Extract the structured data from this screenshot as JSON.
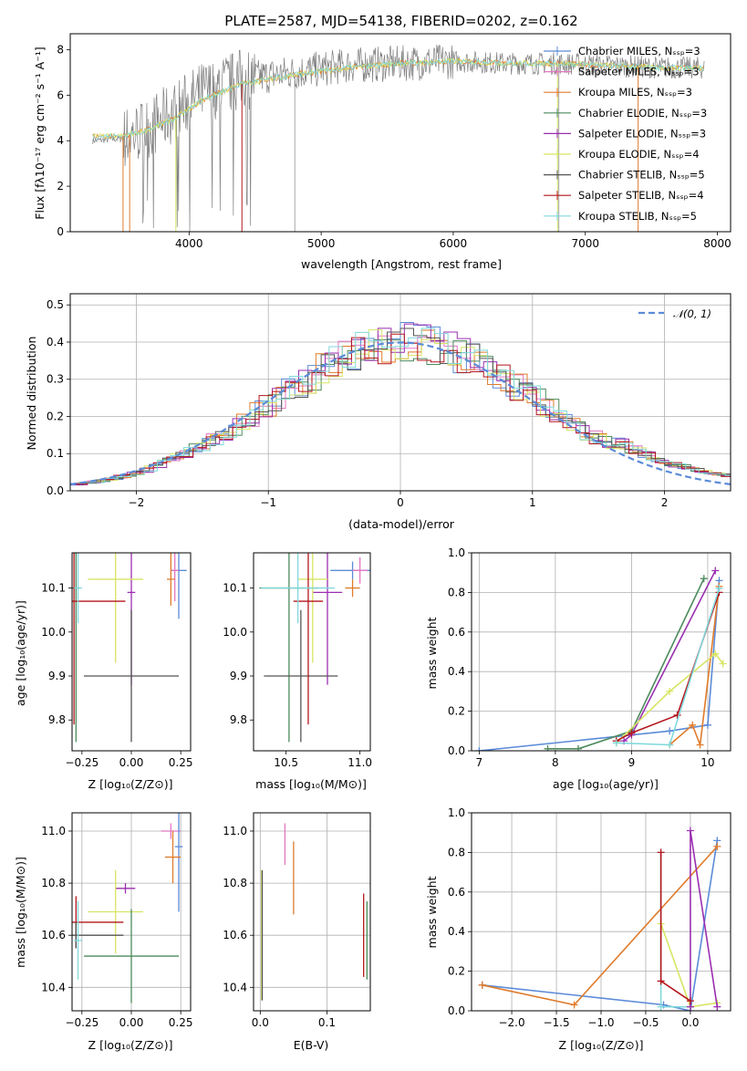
{
  "colors": {
    "Chabrier MILES": "#5b8bd8",
    "Salpeter MILES": "#e377c2",
    "Kroupa MILES": "#e07b2b",
    "Chabrier ELODIE": "#4c8b5c",
    "Salpeter ELODIE": "#9a2fb0",
    "Kroupa ELODIE": "#d7e563",
    "Chabrier STELIB": "#555555",
    "Salpeter STELIB": "#b4161c",
    "Kroupa STELIB": "#7fd9dc",
    "normal": "#5b8bd8"
  },
  "chart_data": [
    {
      "id": "spectrum",
      "type": "line",
      "title": "PLATE=2587, MJD=54138, FIBERID=0202, z=0.162",
      "xlabel": "wavelength [Angstrom, rest frame]",
      "ylabel": "Flux [fλ10⁻¹⁷ erg cm⁻² s⁻¹ A⁻¹]",
      "xlim": [
        3100,
        8100
      ],
      "ylim": [
        0,
        8.7
      ],
      "xticks": [
        "4000",
        "5000",
        "6000",
        "7000",
        "8000"
      ],
      "yticks": [
        "0",
        "2",
        "4",
        "6",
        "8"
      ],
      "grid": false,
      "legend": "right",
      "legend_entries": [
        "Chabrier MILES, Nₛₛₚ=3",
        "Salpeter MILES, Nₛₛₚ=3",
        "Kroupa MILES, Nₛₛₚ=3",
        "Chabrier ELODIE, Nₛₛₚ=3",
        "Salpeter ELODIE, Nₛₛₚ=3",
        "Kroupa ELODIE, Nₛₛₚ=4",
        "Chabrier STELIB, Nₛₛₚ=5",
        "Salpeter STELIB, Nₛₛₚ=4",
        "Kroupa STELIB, Nₛₛₚ=5"
      ],
      "legend_models": [
        "Chabrier MILES",
        "Salpeter MILES",
        "Kroupa MILES",
        "Chabrier ELODIE",
        "Salpeter ELODIE",
        "Kroupa ELODIE",
        "Chabrier STELIB",
        "Salpeter STELIB",
        "Kroupa STELIB"
      ],
      "data_continuum": {
        "x": [
          3270,
          3500,
          3700,
          3900,
          4100,
          4400,
          4800,
          5200,
          5600,
          6000,
          6400,
          6800,
          7200,
          7600,
          7900
        ],
        "y": [
          4.0,
          4.1,
          4.6,
          5.3,
          6.1,
          6.7,
          7.0,
          7.3,
          7.4,
          7.5,
          7.4,
          7.4,
          7.3,
          7.2,
          7.2
        ]
      },
      "model_continuum": {
        "x": [
          3270,
          3500,
          3700,
          3900,
          4100,
          4400,
          4800,
          5200,
          5600,
          6000,
          6400,
          6800,
          7200,
          7600,
          7900
        ],
        "y": [
          4.2,
          4.2,
          4.5,
          5.0,
          5.8,
          6.5,
          6.9,
          7.2,
          7.4,
          7.5,
          7.4,
          7.4,
          7.3,
          7.2,
          7.2
        ]
      }
    },
    {
      "id": "residuals",
      "type": "line",
      "xlabel": "(data-model)/error",
      "ylabel": "Normed distribution",
      "xlim": [
        -2.5,
        2.5
      ],
      "ylim": [
        0,
        0.53
      ],
      "xticks": [
        "−2",
        "−1",
        "0",
        "1",
        "2"
      ],
      "yticks": [
        "0.0",
        "0.1",
        "0.2",
        "0.3",
        "0.4",
        "0.5"
      ],
      "grid": true,
      "legend": "top-right",
      "legend_entries": [
        "𝒩(0, 1)"
      ],
      "normal": {
        "mean": 0,
        "sigma": 1
      }
    },
    {
      "id": "age-Z",
      "type": "scatter",
      "xlabel": "Z [log₁₀(Z/Z⊙)]",
      "ylabel": "age  [log₁₀(age/yr)]",
      "xlim": [
        -0.3,
        0.3
      ],
      "ylim": [
        9.73,
        10.18
      ],
      "xticks": [
        "−0.25",
        "0.00",
        "0.25"
      ],
      "yticks": [
        "9.8",
        "9.9",
        "10.0",
        "10.1"
      ],
      "points": [
        {
          "model": "Chabrier MILES",
          "x": 0.24,
          "y": 10.14,
          "xerr": 0.04,
          "yerr": 0.11
        },
        {
          "model": "Salpeter MILES",
          "x": 0.22,
          "y": 10.14,
          "xerr": 0.02,
          "yerr": 0.07
        },
        {
          "model": "Kroupa MILES",
          "x": 0.2,
          "y": 10.12,
          "xerr": 0.02,
          "yerr": 0.06
        },
        {
          "model": "Chabrier ELODIE",
          "x": -0.28,
          "y": 10.1,
          "xerr": 0.02,
          "yerr": 0.35
        },
        {
          "model": "Salpeter ELODIE",
          "x": 0.0,
          "y": 10.09,
          "xerr": 0.02,
          "yerr": 0.21
        },
        {
          "model": "Kroupa ELODIE",
          "x": -0.08,
          "y": 10.12,
          "xerr": 0.14,
          "yerr": 0.19
        },
        {
          "model": "Chabrier STELIB",
          "x": 0.0,
          "y": 9.9,
          "xerr": 0.24,
          "yerr": 0.15
        },
        {
          "model": "Salpeter STELIB",
          "x": -0.29,
          "y": 10.07,
          "xerr": 0.26,
          "yerr": 0.28
        },
        {
          "model": "Kroupa STELIB",
          "x": -0.27,
          "y": 10.1,
          "xerr": 0.02,
          "yerr": 0.08
        }
      ]
    },
    {
      "id": "age-mass",
      "type": "scatter",
      "xlabel": "mass [log₁₀(M/M⊙)]",
      "ylabel": "",
      "xlim": [
        10.28,
        11.07
      ],
      "ylim": [
        9.73,
        10.18
      ],
      "xticks": [
        "10.5",
        "11.0"
      ],
      "yticks": [
        "9.8",
        "9.9",
        "10.0",
        "10.1"
      ],
      "points": [
        {
          "model": "Chabrier MILES",
          "x": 10.95,
          "y": 10.14,
          "xerr": 0.15,
          "yerr": 0.02
        },
        {
          "model": "Salpeter MILES",
          "x": 11.0,
          "y": 10.14,
          "xerr": 0.05,
          "yerr": 0.03
        },
        {
          "model": "Kroupa MILES",
          "x": 10.95,
          "y": 10.1,
          "xerr": 0.05,
          "yerr": 0.02
        },
        {
          "model": "Chabrier ELODIE",
          "x": 10.52,
          "y": 10.1,
          "xerr": 0.2,
          "yerr": 0.35
        },
        {
          "model": "Salpeter ELODIE",
          "x": 10.78,
          "y": 10.09,
          "xerr": 0.1,
          "yerr": 0.21
        },
        {
          "model": "Kroupa ELODIE",
          "x": 10.68,
          "y": 10.12,
          "xerr": 0.1,
          "yerr": 0.19
        },
        {
          "model": "Chabrier STELIB",
          "x": 10.6,
          "y": 9.9,
          "xerr": 0.25,
          "yerr": 0.15
        },
        {
          "model": "Salpeter STELIB",
          "x": 10.65,
          "y": 10.07,
          "xerr": 0.1,
          "yerr": 0.28
        },
        {
          "model": "Kroupa STELIB",
          "x": 10.58,
          "y": 10.1,
          "xerr": 0.25,
          "yerr": 0.08
        }
      ]
    },
    {
      "id": "weight-age",
      "type": "line",
      "xlabel": "age  [log₁₀(age/yr)]",
      "ylabel": "mass weight",
      "xlim": [
        6.9,
        10.3
      ],
      "ylim": [
        0,
        1.0
      ],
      "xticks": [
        "7",
        "8",
        "9",
        "10"
      ],
      "yticks": [
        "0.0",
        "0.2",
        "0.4",
        "0.6",
        "0.8",
        "1.0"
      ],
      "grid": true,
      "series": [
        {
          "model": "Chabrier MILES",
          "x": [
            7.0,
            9.5,
            10.0,
            10.15
          ],
          "y": [
            0.0,
            0.1,
            0.13,
            0.86
          ]
        },
        {
          "model": "Kroupa MILES",
          "x": [
            9.5,
            9.8,
            9.9,
            10.15
          ],
          "y": [
            0.03,
            0.13,
            0.03,
            0.83
          ]
        },
        {
          "model": "Chabrier ELODIE",
          "x": [
            7.9,
            8.3,
            9.0,
            9.95
          ],
          "y": [
            0.01,
            0.01,
            0.1,
            0.87
          ]
        },
        {
          "model": "Salpeter ELODIE",
          "x": [
            8.9,
            9.0,
            10.1
          ],
          "y": [
            0.05,
            0.08,
            0.91
          ]
        },
        {
          "model": "Kroupa ELODIE",
          "x": [
            8.8,
            9.5,
            10.1,
            10.2
          ],
          "y": [
            0.04,
            0.3,
            0.49,
            0.44
          ]
        },
        {
          "model": "Salpeter STELIB",
          "x": [
            8.8,
            9.0,
            9.6,
            10.15
          ],
          "y": [
            0.05,
            0.09,
            0.18,
            0.8
          ]
        },
        {
          "model": "Kroupa STELIB",
          "x": [
            8.8,
            9.5,
            10.15
          ],
          "y": [
            0.04,
            0.03,
            0.82
          ]
        }
      ]
    },
    {
      "id": "mass-Z",
      "type": "scatter",
      "xlabel": "Z [log₁₀(Z/Z⊙)]",
      "ylabel": "mass [log₁₀(M/M⊙)]",
      "xlim": [
        -0.3,
        0.3
      ],
      "ylim": [
        10.31,
        11.07
      ],
      "xticks": [
        "−0.25",
        "0.00",
        "0.25"
      ],
      "yticks": [
        "10.4",
        "10.6",
        "10.8",
        "11.0"
      ],
      "grid": true,
      "points": [
        {
          "model": "Salpeter MILES",
          "x": 0.2,
          "y": 11.0,
          "xerr": 0.05,
          "yerr": 0.03
        },
        {
          "model": "Chabrier MILES",
          "x": 0.24,
          "y": 10.94,
          "xerr": 0.02,
          "yerr": 0.25
        },
        {
          "model": "Kroupa MILES",
          "x": 0.21,
          "y": 10.9,
          "xerr": 0.04,
          "yerr": 0.1
        },
        {
          "model": "Salpeter ELODIE",
          "x": -0.03,
          "y": 10.78,
          "xerr": 0.05,
          "yerr": 0.02
        },
        {
          "model": "Kroupa ELODIE",
          "x": -0.08,
          "y": 10.69,
          "xerr": 0.14,
          "yerr": 0.16
        },
        {
          "model": "Salpeter STELIB",
          "x": -0.28,
          "y": 10.65,
          "xerr": 0.24,
          "yerr": 0.1
        },
        {
          "model": "Chabrier STELIB",
          "x": -0.28,
          "y": 10.6,
          "xerr": 0.24,
          "yerr": 0.05
        },
        {
          "model": "Kroupa STELIB",
          "x": -0.27,
          "y": 10.58,
          "xerr": 0.02,
          "yerr": 0.15
        },
        {
          "model": "Chabrier ELODIE",
          "x": 0.0,
          "y": 10.52,
          "xerr": 0.24,
          "yerr": 0.18
        }
      ]
    },
    {
      "id": "mass-EBV",
      "type": "scatter",
      "xlabel": "E(B-V)",
      "ylabel": "",
      "xlim": [
        -0.01,
        0.165
      ],
      "ylim": [
        10.31,
        11.07
      ],
      "xticks": [
        "0.0",
        "0.1"
      ],
      "yticks": [
        "10.4",
        "10.6",
        "10.8",
        "11.0"
      ],
      "grid": true,
      "points": [
        {
          "model": "Salpeter MILES",
          "x": 0.037,
          "y": 10.95,
          "yerr": 0.08
        },
        {
          "model": "Kroupa MILES",
          "x": 0.05,
          "y": 10.82,
          "yerr": 0.14
        },
        {
          "model": "Kroupa ELODIE",
          "x": 0.002,
          "y": 10.6,
          "yerr": 0.25
        },
        {
          "model": "Chabrier STELIB",
          "x": 0.003,
          "y": 10.6,
          "yerr": 0.25
        },
        {
          "model": "Salpeter STELIB",
          "x": 0.155,
          "y": 10.6,
          "yerr": 0.16
        },
        {
          "model": "Chabrier ELODIE",
          "x": 0.16,
          "y": 10.58,
          "yerr": 0.15
        }
      ]
    },
    {
      "id": "weight-Z",
      "type": "line",
      "xlabel": "Z [log₁₀(Z/Z⊙)]",
      "ylabel": "mass weight",
      "xlim": [
        -2.45,
        0.45
      ],
      "ylim": [
        0,
        1.0
      ],
      "xticks": [
        "−2.0",
        "−1.5",
        "−1.0",
        "−0.5",
        "0.0"
      ],
      "yticks": [
        "0.0",
        "0.2",
        "0.4",
        "0.6",
        "0.8",
        "1.0"
      ],
      "grid": true,
      "series": [
        {
          "model": "Chabrier MILES",
          "x": [
            -2.33,
            -0.3,
            0.0,
            0.3
          ],
          "y": [
            0.13,
            0.03,
            0.0,
            0.86
          ]
        },
        {
          "model": "Kroupa MILES",
          "x": [
            -2.33,
            -1.3,
            0.3
          ],
          "y": [
            0.13,
            0.03,
            0.83
          ]
        },
        {
          "model": "Kroupa STELIB",
          "x": [
            -0.33,
            -0.33,
            0.0
          ],
          "y": [
            0.8,
            0.02,
            0.02
          ]
        },
        {
          "model": "Kroupa ELODIE",
          "x": [
            -0.33,
            0.0,
            0.3
          ],
          "y": [
            0.44,
            0.02,
            0.04
          ]
        },
        {
          "model": "Salpeter ELODIE",
          "x": [
            0.0,
            0.0,
            0.3
          ],
          "y": [
            0.02,
            0.91,
            0.02
          ]
        },
        {
          "model": "Salpeter STELIB",
          "x": [
            -0.33,
            -0.33,
            0.0
          ],
          "y": [
            0.8,
            0.15,
            0.05
          ]
        }
      ]
    }
  ]
}
